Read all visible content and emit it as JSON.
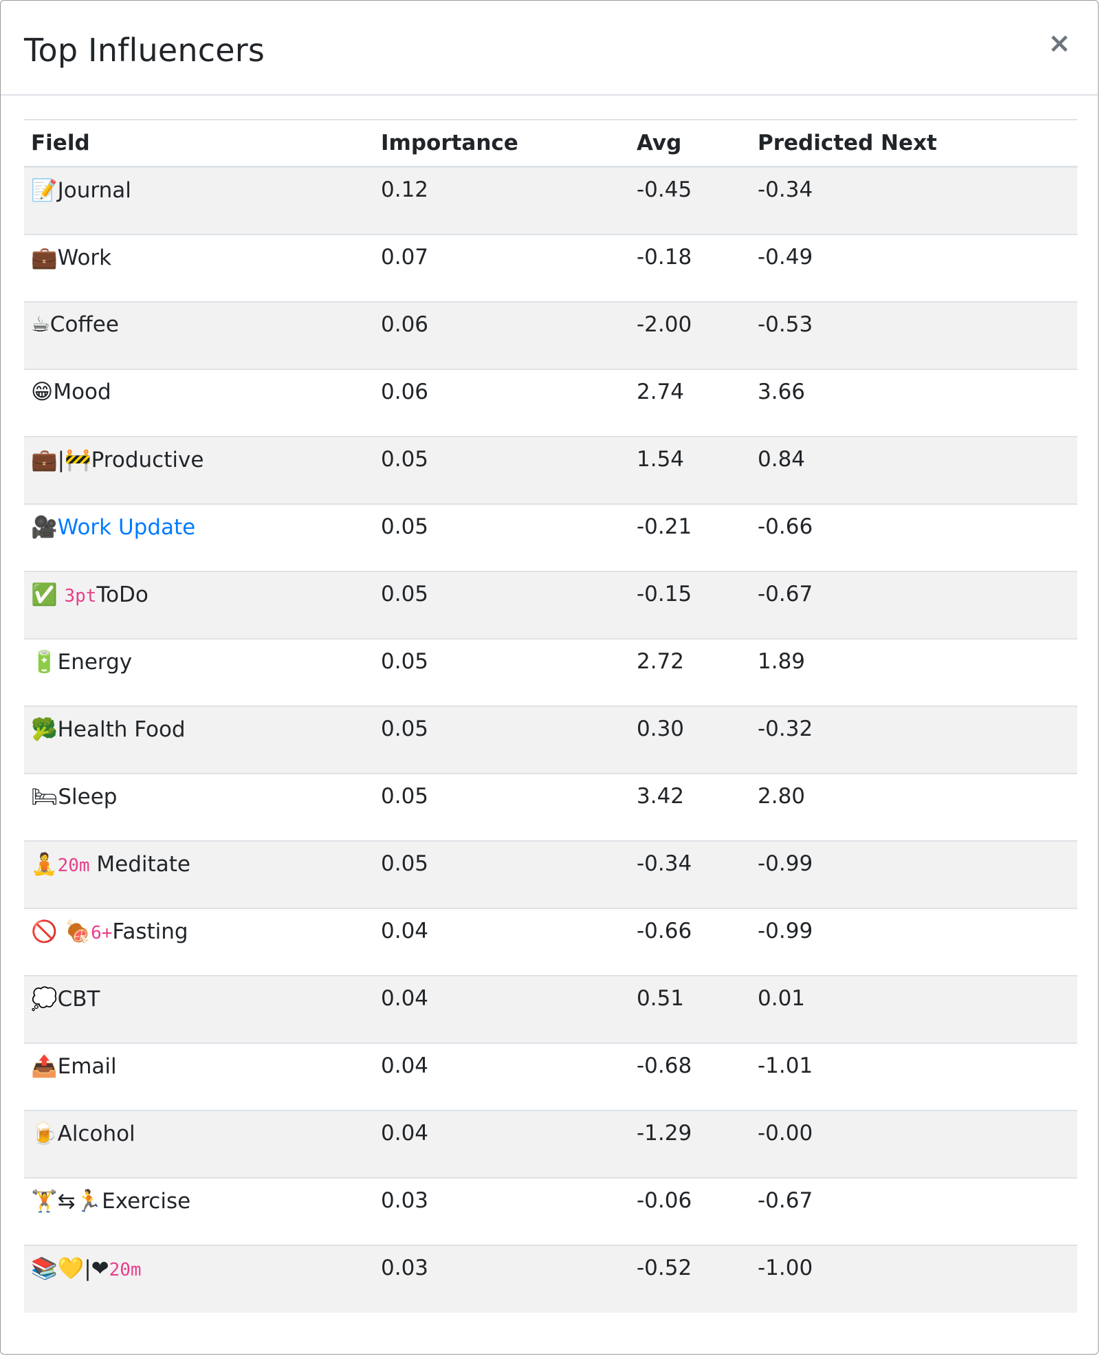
{
  "modal": {
    "title": "Top Influencers",
    "close_label": "×"
  },
  "table": {
    "headers": [
      "Field",
      "Importance",
      "Avg",
      "Predicted Next"
    ],
    "rows": [
      {
        "icon": "📝",
        "tag": "",
        "label": "Journal",
        "link": false,
        "importance": "0.12",
        "avg": "-0.45",
        "next": "-0.34"
      },
      {
        "icon": "💼",
        "tag": "",
        "label": "Work",
        "link": false,
        "importance": "0.07",
        "avg": "-0.18",
        "next": "-0.49"
      },
      {
        "icon": "☕",
        "tag": "",
        "label": "Coffee",
        "link": false,
        "importance": "0.06",
        "avg": "-2.00",
        "next": "-0.53"
      },
      {
        "icon": "😁",
        "tag": "",
        "label": "Mood",
        "link": false,
        "importance": "0.06",
        "avg": "2.74",
        "next": "3.66"
      },
      {
        "icon": "💼|🚧",
        "tag": "",
        "label": "Productive",
        "link": false,
        "importance": "0.05",
        "avg": "1.54",
        "next": "0.84"
      },
      {
        "icon": "🎥",
        "tag": "",
        "label": "Work Update",
        "link": true,
        "importance": "0.05",
        "avg": "-0.21",
        "next": "-0.66"
      },
      {
        "icon": "✅ ",
        "tag": "3pt",
        "label": "ToDo",
        "link": false,
        "importance": "0.05",
        "avg": "-0.15",
        "next": "-0.67"
      },
      {
        "icon": "🔋",
        "tag": "",
        "label": "Energy",
        "link": false,
        "importance": "0.05",
        "avg": "2.72",
        "next": "1.89"
      },
      {
        "icon": "🥦",
        "tag": "",
        "label": "Health Food",
        "link": false,
        "importance": "0.05",
        "avg": "0.30",
        "next": "-0.32"
      },
      {
        "icon": "🛏",
        "tag": "",
        "label": "Sleep",
        "link": false,
        "importance": "0.05",
        "avg": "3.42",
        "next": "2.80"
      },
      {
        "icon": "🧘",
        "tag": "20m",
        "label": " Meditate",
        "link": false,
        "importance": "0.05",
        "avg": "-0.34",
        "next": "-0.99"
      },
      {
        "icon": "🚫 🍖",
        "tag": "6+",
        "label": "Fasting",
        "link": false,
        "importance": "0.04",
        "avg": "-0.66",
        "next": "-0.99"
      },
      {
        "icon": "💭",
        "tag": "",
        "label": "CBT",
        "link": false,
        "importance": "0.04",
        "avg": "0.51",
        "next": "0.01"
      },
      {
        "icon": "📤",
        "tag": "",
        "label": "Email",
        "link": false,
        "importance": "0.04",
        "avg": "-0.68",
        "next": "-1.01"
      },
      {
        "icon": "🍺",
        "tag": "",
        "label": "Alcohol",
        "link": false,
        "importance": "0.04",
        "avg": "-1.29",
        "next": "-0.00"
      },
      {
        "icon": "🏋⇆🏃",
        "tag": "",
        "label": "Exercise",
        "link": false,
        "importance": "0.03",
        "avg": "-0.06",
        "next": "-0.67"
      },
      {
        "icon": "📚💛|❤",
        "tag": "20m",
        "label": "",
        "link": false,
        "importance": "0.03",
        "avg": "-0.52",
        "next": "-1.00"
      }
    ]
  }
}
